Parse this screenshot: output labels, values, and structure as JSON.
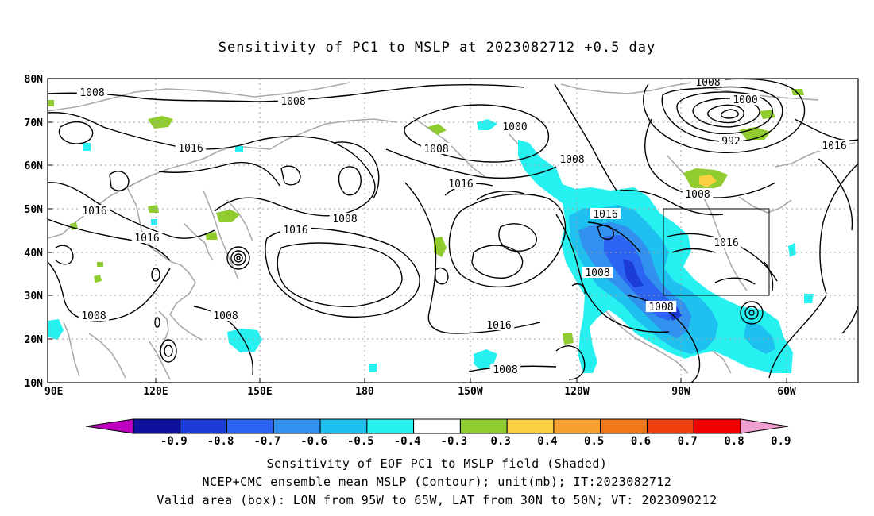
{
  "title": "Sensitivity of PC1 to MSLP at 2023082712 +0.5 day",
  "map": {
    "lat_labels": [
      "80N",
      "70N",
      "60N",
      "50N",
      "40N",
      "30N",
      "20N",
      "10N"
    ],
    "lon_labels": [
      "90E",
      "120E",
      "150E",
      "180",
      "150W",
      "120W",
      "90W",
      "60W"
    ],
    "contour_labels": [
      {
        "text": "1008"
      },
      {
        "text": "1008"
      },
      {
        "text": "1016"
      },
      {
        "text": "1016"
      },
      {
        "text": "1016"
      },
      {
        "text": "1008"
      },
      {
        "text": "1008"
      },
      {
        "text": "1016"
      },
      {
        "text": "1008"
      },
      {
        "text": "1000"
      },
      {
        "text": "1008"
      },
      {
        "text": "1008"
      },
      {
        "text": "1016"
      },
      {
        "text": "1016"
      },
      {
        "text": "1016"
      },
      {
        "text": "1008"
      },
      {
        "text": "1000"
      },
      {
        "text": "992"
      },
      {
        "text": "1016"
      },
      {
        "text": "1008"
      },
      {
        "text": "1016"
      },
      {
        "text": "1008"
      },
      {
        "text": "1008"
      },
      {
        "text": "1008"
      }
    ],
    "colors": {
      "coast": "#aaaaaa",
      "contour": "#000000",
      "grid": "#a0a0a0"
    }
  },
  "colorbar": {
    "labels": [
      "-0.9",
      "-0.8",
      "-0.7",
      "-0.6",
      "-0.5",
      "-0.4",
      "-0.3",
      "0.3",
      "0.4",
      "0.5",
      "0.6",
      "0.7",
      "0.8",
      "0.9"
    ],
    "low_arrow": "#c000c0",
    "high_arrow": "#f0a0d0",
    "bins": [
      "#1010a0",
      "#1c3cd8",
      "#2a64f0",
      "#3290ee",
      "#1ec0f0",
      "#26f0f0",
      "#ffffff",
      "#90cc30",
      "#f8d040",
      "#f8a030",
      "#f07818",
      "#f04010",
      "#f00000"
    ]
  },
  "captions": {
    "line1": "Sensitivity of EOF PC1 to MSLP field (Shaded)",
    "line2": "NCEP+CMC ensemble mean MSLP (Contour); unit(mb); IT:2023082712",
    "line3": "Valid area (box): LON from 95W to 65W, LAT from 30N to 50N; VT: 2023090212"
  }
}
